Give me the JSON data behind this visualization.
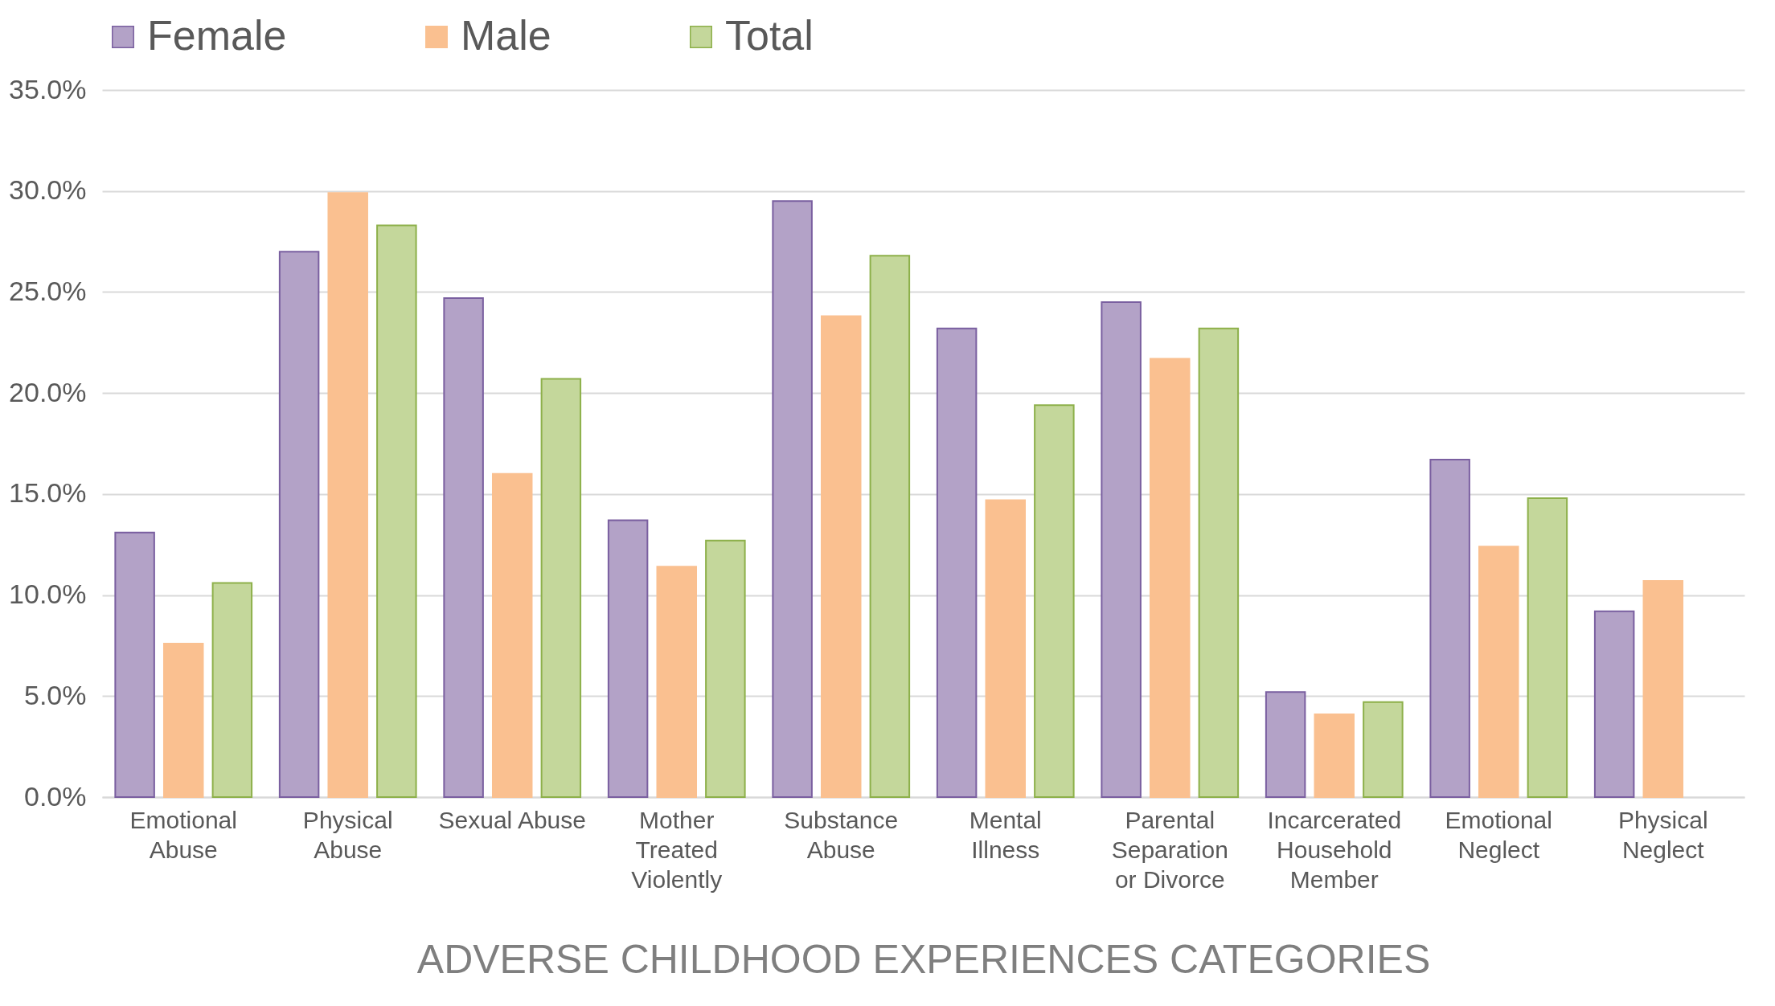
{
  "chart_data": {
    "type": "bar",
    "xlabel": "ADVERSE CHILDHOOD EXPERIENCES CATEGORIES",
    "categories": [
      "Emotional Abuse",
      "Physical Abuse",
      "Sexual Abuse",
      "Mother Treated Violently",
      "Substance Abuse",
      "Mental Illness",
      "Parental Separation or Divorce",
      "Incarcerated Household Member",
      "Emotional Neglect",
      "Physical Neglect"
    ],
    "series": [
      {
        "name": "Female",
        "color": "#b3a2c7",
        "values": [
          13.1,
          27.0,
          24.7,
          13.7,
          29.5,
          23.2,
          24.5,
          5.2,
          16.7,
          9.2
        ]
      },
      {
        "name": "Male",
        "color": "#fac090",
        "values": [
          7.6,
          29.9,
          16.0,
          11.4,
          23.8,
          14.7,
          21.7,
          4.1,
          12.4,
          10.7
        ]
      },
      {
        "name": "Total",
        "color": "#c4d79b",
        "values": [
          10.6,
          28.3,
          20.7,
          12.7,
          26.8,
          19.4,
          23.2,
          4.7,
          14.8,
          null
        ]
      }
    ],
    "ylim": [
      0,
      35
    ],
    "yticks": [
      {
        "value": 0,
        "label": "0.0%"
      },
      {
        "value": 5,
        "label": "5.0%"
      },
      {
        "value": 10,
        "label": "10.0%"
      },
      {
        "value": 15,
        "label": "15.0%"
      },
      {
        "value": 20,
        "label": "20.0%"
      },
      {
        "value": 25,
        "label": "25.0%"
      },
      {
        "value": 30,
        "label": "30.0%"
      },
      {
        "value": 35,
        "label": "35.0%"
      }
    ],
    "grid": "y",
    "legend": "top"
  }
}
